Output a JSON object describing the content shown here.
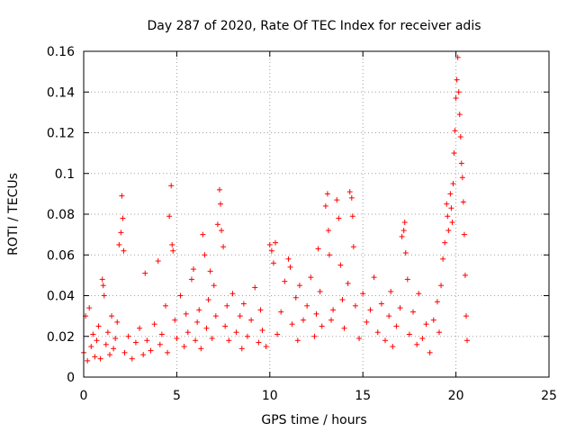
{
  "chart_data": {
    "type": "scatter",
    "title": "Day 287 of 2020, Rate Of TEC Index for receiver adis",
    "xlabel": "GPS time / hours",
    "ylabel": "ROTI / TECUs",
    "xlim": [
      0,
      25
    ],
    "ylim": [
      0,
      0.16
    ],
    "xticks": [
      "0",
      "5",
      "10",
      "15",
      "20",
      "25"
    ],
    "yticks": [
      "0",
      "0.02",
      "0.04",
      "0.06",
      "0.08",
      "0.1",
      "0.12",
      "0.14",
      "0.16"
    ],
    "grid": true,
    "marker": "+",
    "series": [
      {
        "color": "#ff0000",
        "points": [
          [
            0.0,
            0.012
          ],
          [
            0.1,
            0.03
          ],
          [
            0.2,
            0.008
          ],
          [
            0.3,
            0.034
          ],
          [
            0.4,
            0.015
          ],
          [
            0.5,
            0.021
          ],
          [
            0.6,
            0.01
          ],
          [
            0.7,
            0.018
          ],
          [
            0.8,
            0.025
          ],
          [
            0.9,
            0.009
          ],
          [
            1.0,
            0.048
          ],
          [
            1.05,
            0.045
          ],
          [
            1.1,
            0.04
          ],
          [
            1.2,
            0.016
          ],
          [
            1.3,
            0.022
          ],
          [
            1.4,
            0.011
          ],
          [
            1.5,
            0.03
          ],
          [
            1.6,
            0.014
          ],
          [
            1.7,
            0.019
          ],
          [
            1.8,
            0.027
          ],
          [
            1.9,
            0.065
          ],
          [
            2.0,
            0.071
          ],
          [
            2.05,
            0.089
          ],
          [
            2.1,
            0.078
          ],
          [
            2.15,
            0.062
          ],
          [
            2.2,
            0.012
          ],
          [
            2.4,
            0.02
          ],
          [
            2.6,
            0.009
          ],
          [
            2.8,
            0.017
          ],
          [
            3.0,
            0.024
          ],
          [
            3.2,
            0.011
          ],
          [
            3.3,
            0.051
          ],
          [
            3.4,
            0.018
          ],
          [
            3.6,
            0.013
          ],
          [
            3.8,
            0.026
          ],
          [
            4.0,
            0.057
          ],
          [
            4.1,
            0.016
          ],
          [
            4.2,
            0.021
          ],
          [
            4.4,
            0.035
          ],
          [
            4.5,
            0.012
          ],
          [
            4.6,
            0.079
          ],
          [
            4.7,
            0.094
          ],
          [
            4.75,
            0.065
          ],
          [
            4.8,
            0.062
          ],
          [
            4.9,
            0.028
          ],
          [
            5.0,
            0.019
          ],
          [
            5.2,
            0.04
          ],
          [
            5.4,
            0.015
          ],
          [
            5.5,
            0.031
          ],
          [
            5.6,
            0.022
          ],
          [
            5.8,
            0.048
          ],
          [
            5.9,
            0.053
          ],
          [
            6.0,
            0.018
          ],
          [
            6.1,
            0.027
          ],
          [
            6.2,
            0.033
          ],
          [
            6.3,
            0.014
          ],
          [
            6.4,
            0.07
          ],
          [
            6.5,
            0.06
          ],
          [
            6.6,
            0.024
          ],
          [
            6.7,
            0.038
          ],
          [
            6.8,
            0.052
          ],
          [
            6.9,
            0.019
          ],
          [
            7.0,
            0.045
          ],
          [
            7.1,
            0.03
          ],
          [
            7.2,
            0.075
          ],
          [
            7.3,
            0.092
          ],
          [
            7.35,
            0.085
          ],
          [
            7.4,
            0.072
          ],
          [
            7.5,
            0.064
          ],
          [
            7.6,
            0.025
          ],
          [
            7.7,
            0.035
          ],
          [
            7.8,
            0.018
          ],
          [
            8.0,
            0.041
          ],
          [
            8.2,
            0.022
          ],
          [
            8.4,
            0.03
          ],
          [
            8.5,
            0.014
          ],
          [
            8.6,
            0.036
          ],
          [
            8.8,
            0.02
          ],
          [
            9.0,
            0.028
          ],
          [
            9.2,
            0.044
          ],
          [
            9.4,
            0.017
          ],
          [
            9.5,
            0.033
          ],
          [
            9.6,
            0.023
          ],
          [
            9.8,
            0.015
          ],
          [
            10.0,
            0.065
          ],
          [
            10.1,
            0.062
          ],
          [
            10.2,
            0.056
          ],
          [
            10.3,
            0.066
          ],
          [
            10.4,
            0.021
          ],
          [
            10.6,
            0.032
          ],
          [
            10.8,
            0.047
          ],
          [
            11.0,
            0.058
          ],
          [
            11.1,
            0.054
          ],
          [
            11.2,
            0.026
          ],
          [
            11.4,
            0.039
          ],
          [
            11.5,
            0.018
          ],
          [
            11.6,
            0.045
          ],
          [
            11.8,
            0.028
          ],
          [
            12.0,
            0.035
          ],
          [
            12.2,
            0.049
          ],
          [
            12.4,
            0.02
          ],
          [
            12.5,
            0.031
          ],
          [
            12.6,
            0.063
          ],
          [
            12.7,
            0.042
          ],
          [
            12.8,
            0.025
          ],
          [
            13.0,
            0.084
          ],
          [
            13.1,
            0.09
          ],
          [
            13.15,
            0.072
          ],
          [
            13.2,
            0.06
          ],
          [
            13.3,
            0.028
          ],
          [
            13.4,
            0.033
          ],
          [
            13.6,
            0.087
          ],
          [
            13.7,
            0.078
          ],
          [
            13.8,
            0.055
          ],
          [
            13.9,
            0.038
          ],
          [
            14.0,
            0.024
          ],
          [
            14.2,
            0.046
          ],
          [
            14.3,
            0.091
          ],
          [
            14.4,
            0.088
          ],
          [
            14.45,
            0.079
          ],
          [
            14.5,
            0.064
          ],
          [
            14.6,
            0.035
          ],
          [
            14.8,
            0.019
          ],
          [
            15.0,
            0.041
          ],
          [
            15.2,
            0.027
          ],
          [
            15.4,
            0.033
          ],
          [
            15.6,
            0.049
          ],
          [
            15.8,
            0.022
          ],
          [
            16.0,
            0.036
          ],
          [
            16.2,
            0.018
          ],
          [
            16.4,
            0.03
          ],
          [
            16.5,
            0.042
          ],
          [
            16.6,
            0.015
          ],
          [
            16.8,
            0.025
          ],
          [
            17.0,
            0.034
          ],
          [
            17.1,
            0.069
          ],
          [
            17.2,
            0.072
          ],
          [
            17.25,
            0.076
          ],
          [
            17.3,
            0.061
          ],
          [
            17.4,
            0.048
          ],
          [
            17.5,
            0.021
          ],
          [
            17.7,
            0.032
          ],
          [
            17.9,
            0.016
          ],
          [
            18.0,
            0.041
          ],
          [
            18.2,
            0.019
          ],
          [
            18.4,
            0.026
          ],
          [
            18.6,
            0.012
          ],
          [
            18.8,
            0.028
          ],
          [
            19.0,
            0.037
          ],
          [
            19.1,
            0.022
          ],
          [
            19.2,
            0.045
          ],
          [
            19.3,
            0.058
          ],
          [
            19.4,
            0.066
          ],
          [
            19.5,
            0.085
          ],
          [
            19.55,
            0.079
          ],
          [
            19.6,
            0.072
          ],
          [
            19.7,
            0.09
          ],
          [
            19.75,
            0.083
          ],
          [
            19.8,
            0.076
          ],
          [
            19.85,
            0.095
          ],
          [
            19.9,
            0.11
          ],
          [
            19.95,
            0.121
          ],
          [
            20.0,
            0.137
          ],
          [
            20.05,
            0.146
          ],
          [
            20.1,
            0.157
          ],
          [
            20.15,
            0.14
          ],
          [
            20.2,
            0.129
          ],
          [
            20.25,
            0.118
          ],
          [
            20.3,
            0.105
          ],
          [
            20.35,
            0.098
          ],
          [
            20.4,
            0.086
          ],
          [
            20.45,
            0.07
          ],
          [
            20.5,
            0.05
          ],
          [
            20.55,
            0.03
          ],
          [
            20.6,
            0.018
          ]
        ]
      }
    ]
  }
}
